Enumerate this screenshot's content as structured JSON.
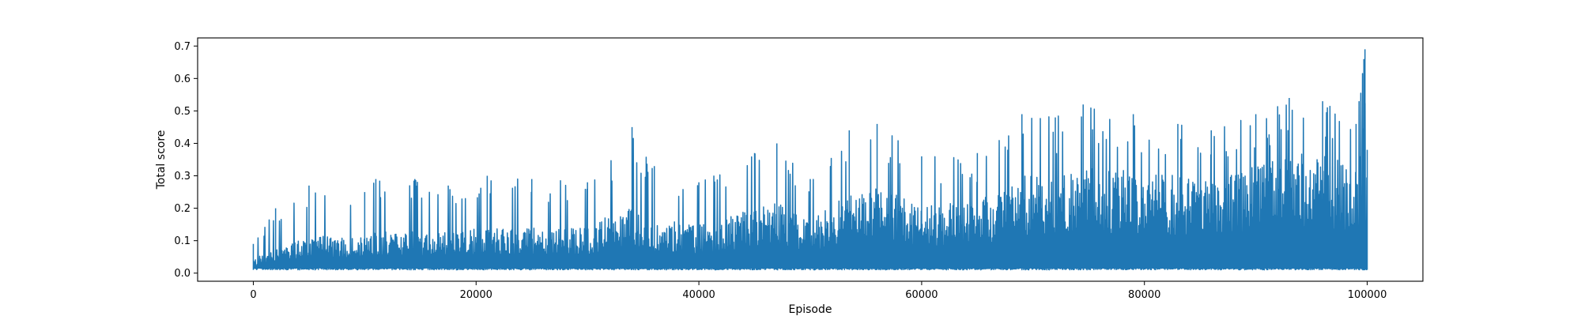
{
  "chart_data": {
    "type": "line",
    "title": "",
    "xlabel": "Episode",
    "ylabel": "Total score",
    "xlim": [
      -5000,
      105000
    ],
    "ylim": [
      -0.025,
      0.725
    ],
    "x_ticks": [
      0,
      20000,
      40000,
      60000,
      80000,
      100000
    ],
    "x_tick_labels": [
      "0",
      "20000",
      "40000",
      "60000",
      "80000",
      "100000"
    ],
    "y_ticks": [
      0.0,
      0.1,
      0.2,
      0.3,
      0.4,
      0.5,
      0.6,
      0.7
    ],
    "y_tick_labels": [
      "0.0",
      "0.1",
      "0.2",
      "0.3",
      "0.4",
      "0.5",
      "0.6",
      "0.7"
    ],
    "grid": false,
    "legend": "none",
    "series": [
      {
        "color": "#1f77b4",
        "x_range": [
          0,
          100000
        ],
        "baseline": 0.01,
        "envelope": [
          {
            "episode": 0,
            "score": 0.09
          },
          {
            "episode": 2000,
            "score": 0.2
          },
          {
            "episode": 5000,
            "score": 0.27
          },
          {
            "episode": 10000,
            "score": 0.25
          },
          {
            "episode": 11000,
            "score": 0.29
          },
          {
            "episode": 14500,
            "score": 0.29
          },
          {
            "episode": 17500,
            "score": 0.27
          },
          {
            "episode": 21000,
            "score": 0.3
          },
          {
            "episode": 25000,
            "score": 0.29
          },
          {
            "episode": 30000,
            "score": 0.28
          },
          {
            "episode": 34000,
            "score": 0.45
          },
          {
            "episode": 36000,
            "score": 0.33
          },
          {
            "episode": 40000,
            "score": 0.28
          },
          {
            "episode": 45000,
            "score": 0.37
          },
          {
            "episode": 47000,
            "score": 0.4
          },
          {
            "episode": 50000,
            "score": 0.29
          },
          {
            "episode": 53500,
            "score": 0.44
          },
          {
            "episode": 56000,
            "score": 0.46
          },
          {
            "episode": 60000,
            "score": 0.36
          },
          {
            "episode": 65000,
            "score": 0.37
          },
          {
            "episode": 69000,
            "score": 0.49
          },
          {
            "episode": 72000,
            "score": 0.48
          },
          {
            "episode": 74500,
            "score": 0.52
          },
          {
            "episode": 79000,
            "score": 0.49
          },
          {
            "episode": 83000,
            "score": 0.46
          },
          {
            "episode": 86000,
            "score": 0.44
          },
          {
            "episode": 90000,
            "score": 0.49
          },
          {
            "episode": 93000,
            "score": 0.54
          },
          {
            "episode": 96000,
            "score": 0.53
          },
          {
            "episode": 99000,
            "score": 0.46
          },
          {
            "episode": 99700,
            "score": 0.66
          },
          {
            "episode": 99800,
            "score": 0.69
          },
          {
            "episode": 100000,
            "score": 0.38
          }
        ]
      }
    ]
  }
}
